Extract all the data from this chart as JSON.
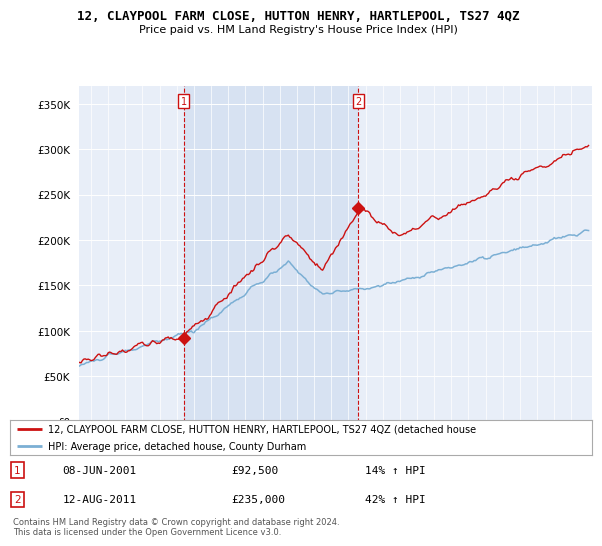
{
  "title": "12, CLAYPOOL FARM CLOSE, HUTTON HENRY, HARTLEPOOL, TS27 4QZ",
  "subtitle": "Price paid vs. HM Land Registry's House Price Index (HPI)",
  "legend_line1": "12, CLAYPOOL FARM CLOSE, HUTTON HENRY, HARTLEPOOL, TS27 4QZ (detached house",
  "legend_line2": "HPI: Average price, detached house, County Durham",
  "marker1_date": "08-JUN-2001",
  "marker1_price": 92500,
  "marker1_label": "14% ↑ HPI",
  "marker2_date": "12-AUG-2011",
  "marker2_price": 235000,
  "marker2_label": "42% ↑ HPI",
  "footer": "Contains HM Land Registry data © Crown copyright and database right 2024.\nThis data is licensed under the Open Government Licence v3.0.",
  "hpi_color": "#7bafd4",
  "price_color": "#cc1111",
  "marker_color": "#cc1111",
  "bg_color": "#e8eef8",
  "shade_color": "#d0ddf0",
  "ylim": [
    0,
    370000
  ],
  "yticks": [
    0,
    50000,
    100000,
    150000,
    200000,
    250000,
    300000,
    350000
  ],
  "x_start_year": 1995,
  "x_end_year": 2025
}
